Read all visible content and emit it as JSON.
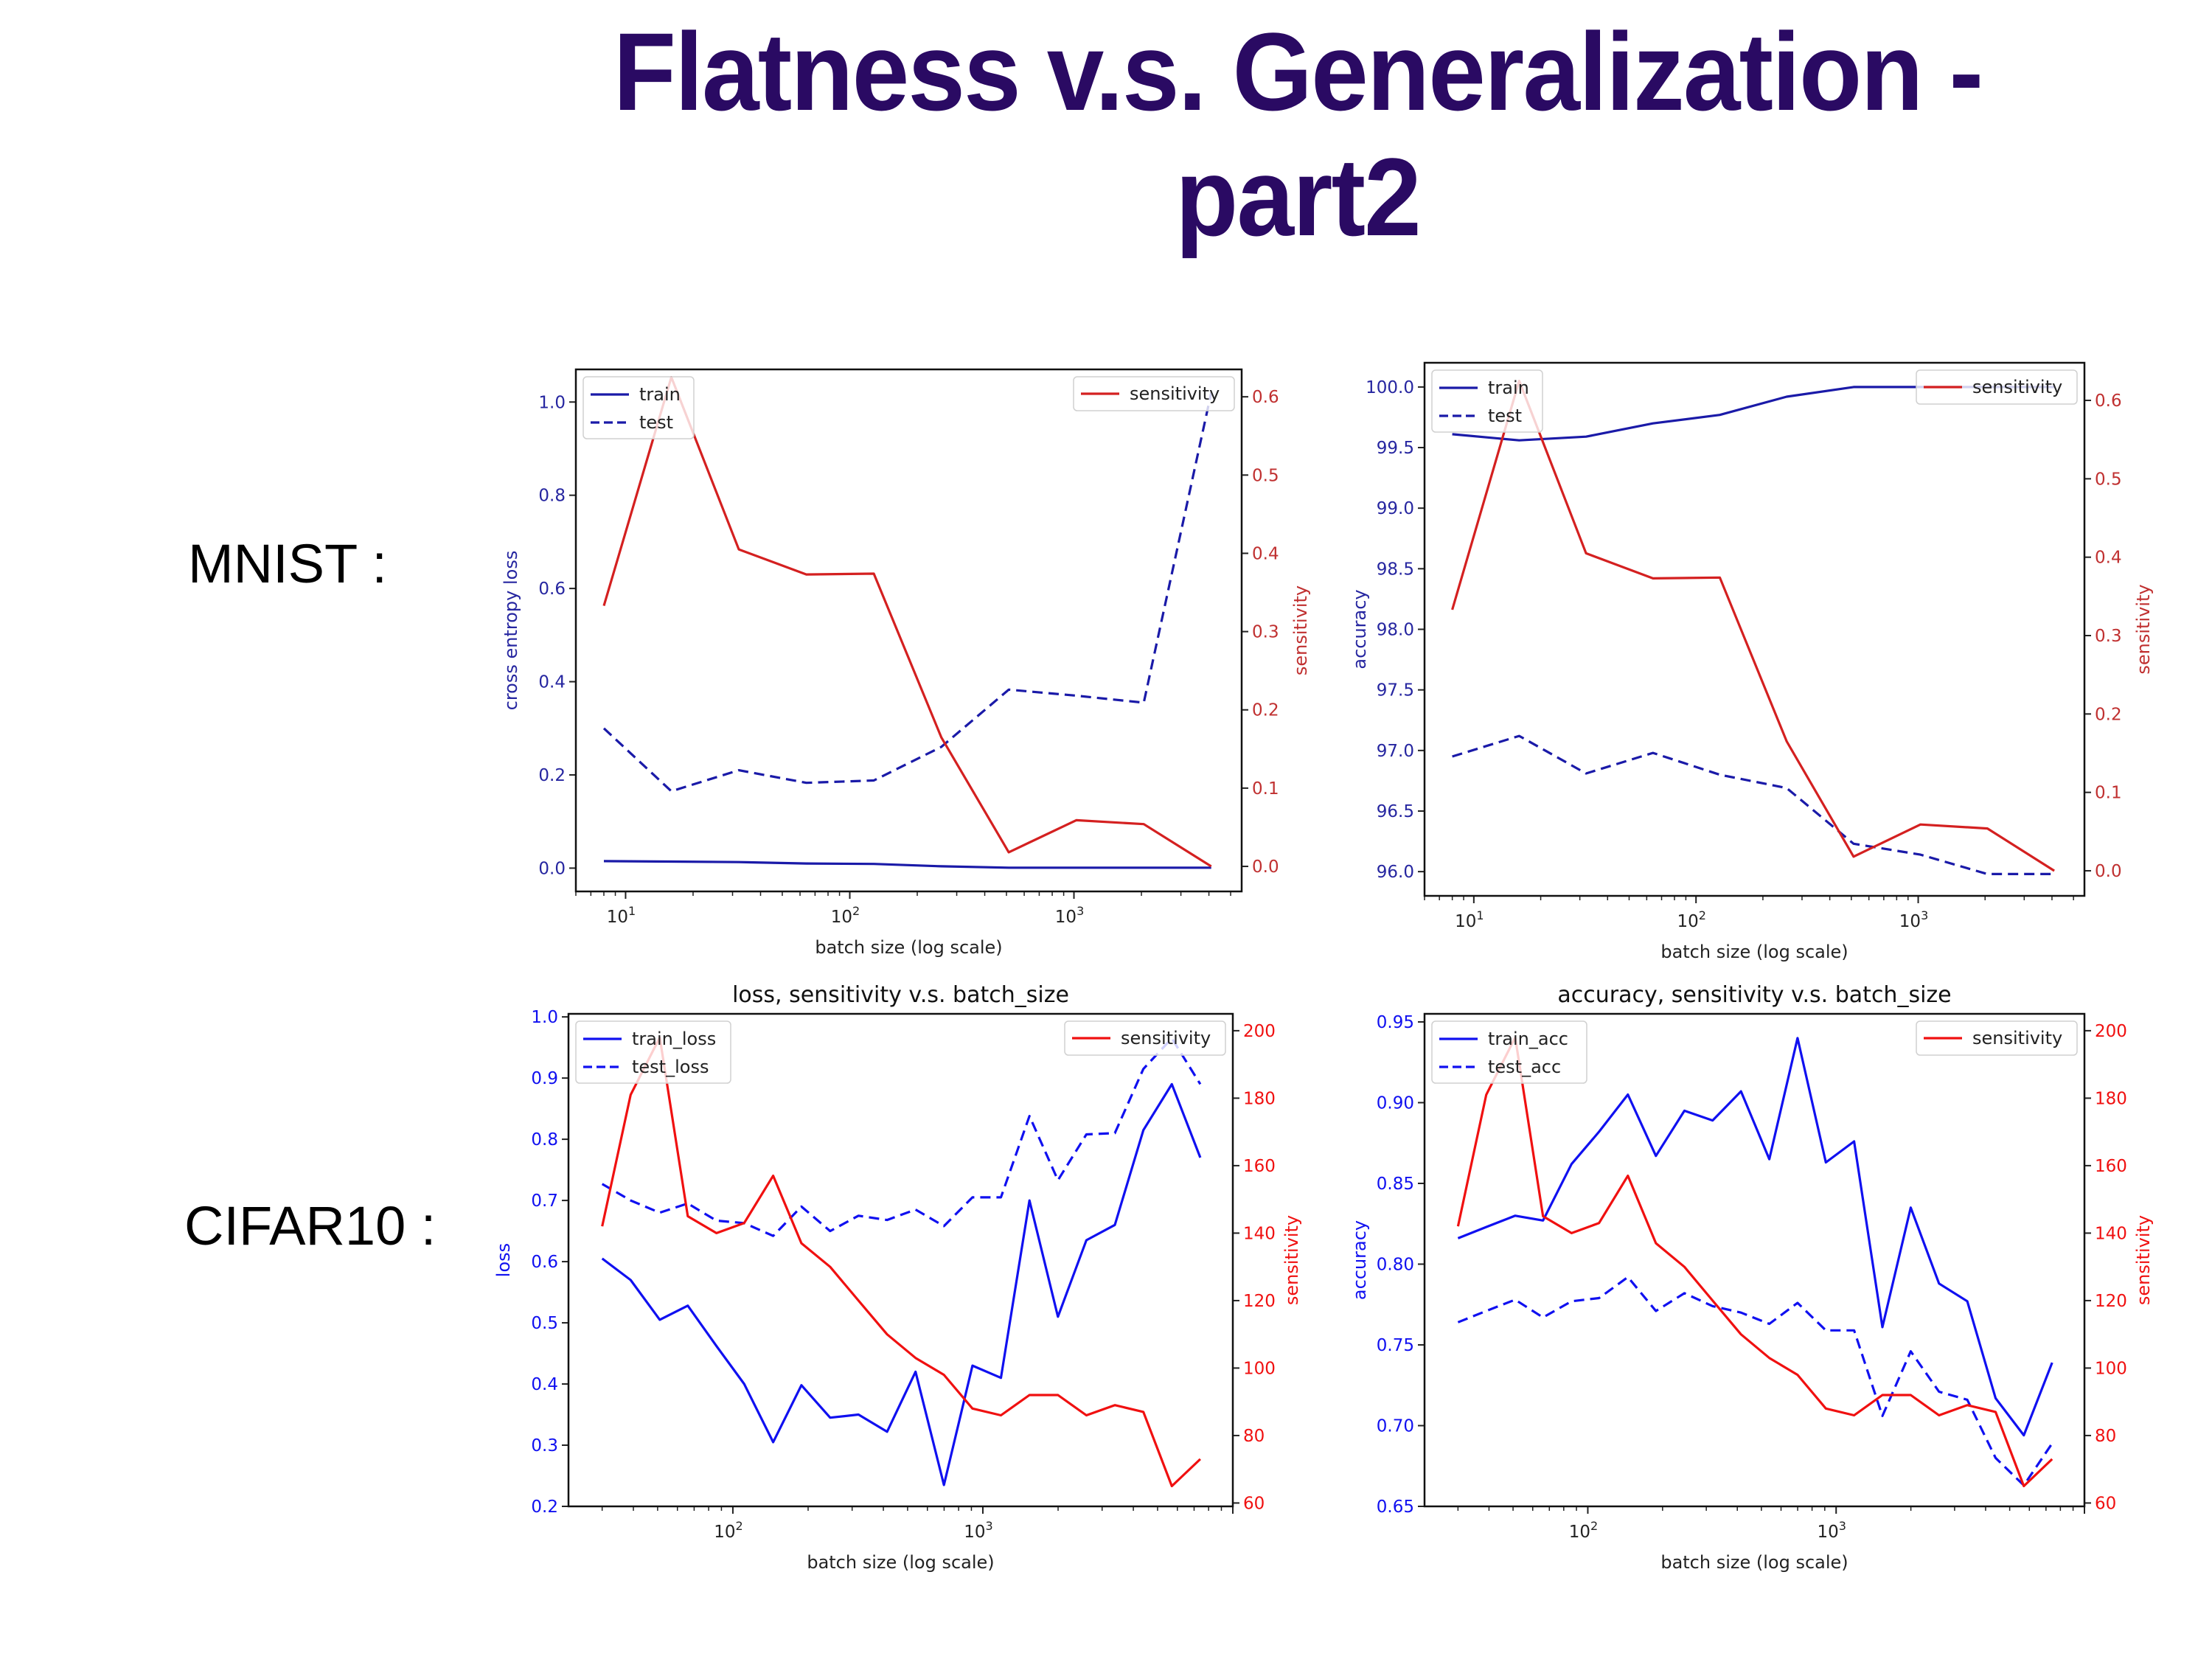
{
  "slide": {
    "title_line1": "Flatness v.s. Generalization -",
    "title_line2": "part2",
    "mnist_label": "MNIST :",
    "cifar_label": "CIFAR10 :",
    "colors": {
      "title": "#2a0a63",
      "blue_mnist": "#1a1aa8",
      "blue_cifar": "#1010f0",
      "red_mnist": "#d42020",
      "red_cifar": "#f01010"
    }
  },
  "chart_data": [
    {
      "id": "mnist-loss",
      "type": "line",
      "title": "",
      "xlabel": "batch size (log scale)",
      "ylabel": "cross entropy loss",
      "y2label": "sensitivity",
      "xscale": "log",
      "xlim": [
        6,
        5600
      ],
      "ylim": [
        -0.05,
        1.07
      ],
      "y2lim": [
        -0.032,
        0.635
      ],
      "xticks": [
        {
          "value": 10,
          "label": "10",
          "exp": "1"
        },
        {
          "value": 100,
          "label": "10",
          "exp": "2"
        },
        {
          "value": 1000,
          "label": "10",
          "exp": "3"
        }
      ],
      "yticks": [
        "0.0",
        "0.2",
        "0.4",
        "0.6",
        "0.8",
        "1.0"
      ],
      "y2ticks": [
        "0.0",
        "0.1",
        "0.2",
        "0.3",
        "0.4",
        "0.5",
        "0.6"
      ],
      "x": [
        8,
        16,
        32,
        64,
        128,
        256,
        512,
        1024,
        2048,
        4096
      ],
      "series": [
        {
          "name": "train",
          "axis": "left",
          "style": "solid",
          "values": [
            0.015,
            0.014,
            0.013,
            0.01,
            0.009,
            0.004,
            0.001,
            0.001,
            0.001,
            0.001
          ]
        },
        {
          "name": "test",
          "axis": "left",
          "style": "dashed",
          "values": [
            0.3,
            0.165,
            0.21,
            0.183,
            0.188,
            0.26,
            0.383,
            0.37,
            0.355,
            1.02
          ]
        },
        {
          "name": "sensitivity",
          "axis": "right",
          "style": "solid",
          "values": [
            0.333,
            0.625,
            0.405,
            0.373,
            0.374,
            0.165,
            0.018,
            0.059,
            0.054,
            0.0
          ]
        }
      ],
      "legend_left": [
        "train",
        "test"
      ],
      "legend_right": [
        "sensitivity"
      ],
      "legend_placement": [
        "upper-left",
        "upper-right"
      ]
    },
    {
      "id": "mnist-acc",
      "type": "line",
      "title": "",
      "xlabel": "batch size (log scale)",
      "ylabel": "accuracy",
      "y2label": "sensitivity",
      "xscale": "log",
      "xlim": [
        6,
        5600
      ],
      "ylim": [
        95.8,
        100.2
      ],
      "y2lim": [
        -0.032,
        0.648
      ],
      "xticks": [
        {
          "value": 10,
          "label": "10",
          "exp": "1"
        },
        {
          "value": 100,
          "label": "10",
          "exp": "2"
        },
        {
          "value": 1000,
          "label": "10",
          "exp": "3"
        }
      ],
      "yticks": [
        "96.0",
        "96.5",
        "97.0",
        "97.5",
        "98.0",
        "98.5",
        "99.0",
        "99.5",
        "100.0"
      ],
      "y2ticks": [
        "0.0",
        "0.1",
        "0.2",
        "0.3",
        "0.4",
        "0.5",
        "0.6"
      ],
      "x": [
        8,
        16,
        32,
        64,
        128,
        256,
        512,
        1024,
        2048,
        4096
      ],
      "series": [
        {
          "name": "train",
          "axis": "left",
          "style": "solid",
          "values": [
            99.61,
            99.56,
            99.59,
            99.7,
            99.77,
            99.92,
            100.0,
            100.0,
            100.0,
            100.0
          ]
        },
        {
          "name": "test",
          "axis": "left",
          "style": "dashed",
          "values": [
            96.95,
            97.12,
            96.81,
            96.98,
            96.8,
            96.69,
            96.23,
            96.14,
            95.98,
            95.98
          ]
        },
        {
          "name": "sensitivity",
          "axis": "right",
          "style": "solid",
          "values": [
            0.333,
            0.625,
            0.405,
            0.373,
            0.374,
            0.165,
            0.018,
            0.059,
            0.054,
            0.0
          ]
        }
      ],
      "legend_left": [
        "train",
        "test"
      ],
      "legend_right": [
        "sensitivity"
      ],
      "legend_placement": [
        "upper-left",
        "upper-right"
      ]
    },
    {
      "id": "cifar-loss",
      "type": "line",
      "title": "loss, sensitivity v.s. batch_size",
      "xlabel": "batch size (log scale)",
      "ylabel": "loss",
      "y2label": "sensitivity",
      "xscale": "log",
      "xlim": [
        22,
        10000
      ],
      "ylim": [
        0.2,
        1.005
      ],
      "y2lim": [
        59,
        205
      ],
      "xticks": [
        {
          "value": 100,
          "label": "10",
          "exp": "2"
        },
        {
          "value": 1000,
          "label": "10",
          "exp": "3"
        }
      ],
      "yticks": [
        "0.2",
        "0.3",
        "0.4",
        "0.5",
        "0.6",
        "0.7",
        "0.8",
        "0.9",
        "1.0"
      ],
      "y2ticks": [
        "60",
        "80",
        "100",
        "120",
        "140",
        "160",
        "180",
        "200"
      ],
      "x": [
        30,
        39,
        51,
        66,
        86,
        111,
        145,
        188,
        245,
        318,
        414,
        538,
        699,
        909,
        1181,
        1536,
        1997,
        2596,
        3374,
        4386,
        5702,
        7413
      ],
      "series": [
        {
          "name": "train_loss",
          "axis": "left",
          "style": "solid",
          "values": [
            0.605,
            0.57,
            0.505,
            0.528,
            0.462,
            0.4,
            0.305,
            0.398,
            0.345,
            0.35,
            0.322,
            0.42,
            0.235,
            0.43,
            0.41,
            0.7,
            0.51,
            0.635,
            0.66,
            0.815,
            0.89,
            0.77
          ]
        },
        {
          "name": "test_loss",
          "axis": "left",
          "style": "dashed",
          "values": [
            0.727,
            0.7,
            0.68,
            0.695,
            0.667,
            0.663,
            0.642,
            0.69,
            0.65,
            0.675,
            0.668,
            0.685,
            0.658,
            0.705,
            0.705,
            0.838,
            0.733,
            0.808,
            0.81,
            0.915,
            0.965,
            0.89
          ]
        },
        {
          "name": "sensitivity",
          "axis": "right",
          "style": "solid",
          "values": [
            142,
            181,
            198,
            145,
            140,
            143,
            157,
            137,
            130,
            120,
            110,
            103,
            98,
            88,
            86,
            92,
            92,
            86,
            89,
            87,
            65,
            73
          ]
        }
      ],
      "legend_left": [
        "train_loss",
        "test_loss"
      ],
      "legend_right": [
        "sensitivity"
      ],
      "legend_placement": [
        "upper-left",
        "upper-right"
      ]
    },
    {
      "id": "cifar-acc",
      "type": "line",
      "title": "accuracy, sensitivity v.s. batch_size",
      "xlabel": "batch size (log scale)",
      "ylabel": "accuracy",
      "y2label": "sensitivity",
      "xscale": "log",
      "xlim": [
        22,
        10000
      ],
      "ylim": [
        0.65,
        0.955
      ],
      "y2lim": [
        59,
        205
      ],
      "xticks": [
        {
          "value": 100,
          "label": "10",
          "exp": "2"
        },
        {
          "value": 1000,
          "label": "10",
          "exp": "3"
        }
      ],
      "yticks": [
        "0.65",
        "0.70",
        "0.75",
        "0.80",
        "0.85",
        "0.90",
        "0.95"
      ],
      "y2ticks": [
        "60",
        "80",
        "100",
        "120",
        "140",
        "160",
        "180",
        "200"
      ],
      "x": [
        30,
        39,
        51,
        66,
        86,
        111,
        145,
        188,
        245,
        318,
        414,
        538,
        699,
        909,
        1181,
        1536,
        1997,
        2596,
        3374,
        4386,
        5702,
        7413
      ],
      "series": [
        {
          "name": "train_acc",
          "axis": "left",
          "style": "solid",
          "values": [
            0.816,
            0.823,
            0.83,
            0.827,
            0.862,
            0.882,
            0.905,
            0.867,
            0.895,
            0.889,
            0.907,
            0.865,
            0.94,
            0.863,
            0.876,
            0.761,
            0.835,
            0.788,
            0.777,
            0.717,
            0.694,
            0.739
          ]
        },
        {
          "name": "test_acc",
          "axis": "left",
          "style": "dashed",
          "values": [
            0.764,
            0.771,
            0.778,
            0.767,
            0.777,
            0.779,
            0.792,
            0.771,
            0.782,
            0.774,
            0.77,
            0.763,
            0.776,
            0.759,
            0.759,
            0.706,
            0.746,
            0.721,
            0.716,
            0.68,
            0.663,
            0.689
          ]
        },
        {
          "name": "sensitivity",
          "axis": "right",
          "style": "solid",
          "values": [
            142,
            181,
            198,
            145,
            140,
            143,
            157,
            137,
            130,
            120,
            110,
            103,
            98,
            88,
            86,
            92,
            92,
            86,
            89,
            87,
            65,
            73
          ]
        }
      ],
      "legend_left": [
        "train_acc",
        "test_acc"
      ],
      "legend_right": [
        "sensitivity"
      ],
      "legend_placement": [
        "upper-left",
        "upper-right"
      ]
    }
  ]
}
